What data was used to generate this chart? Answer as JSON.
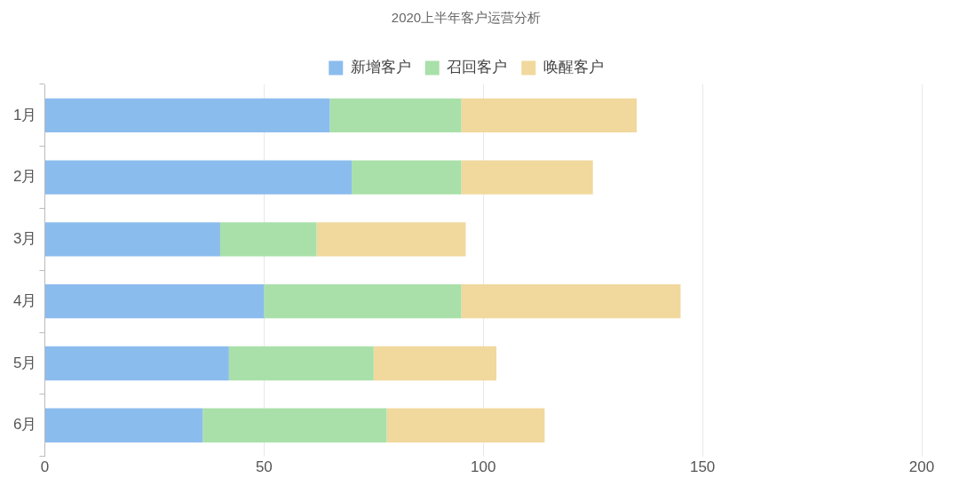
{
  "chart_data": {
    "type": "bar",
    "title": "2020上半年客户运营分析",
    "orientation": "horizontal",
    "stacked": true,
    "categories": [
      "1月",
      "2月",
      "3月",
      "4月",
      "5月",
      "6月"
    ],
    "series": [
      {
        "name": "新增客户",
        "color": "#8bbcee",
        "values": [
          65,
          70,
          40,
          50,
          42,
          36
        ]
      },
      {
        "name": "召回客户",
        "color": "#a9e0a9",
        "values": [
          30,
          25,
          22,
          45,
          33,
          42
        ]
      },
      {
        "name": "唤醒客户",
        "color": "#f1d89c",
        "values": [
          40,
          30,
          34,
          50,
          28,
          36
        ]
      }
    ],
    "xlim": [
      0,
      200
    ],
    "xticks": [
      0,
      50,
      100,
      150,
      200
    ],
    "grid": "x",
    "legend": "top"
  }
}
